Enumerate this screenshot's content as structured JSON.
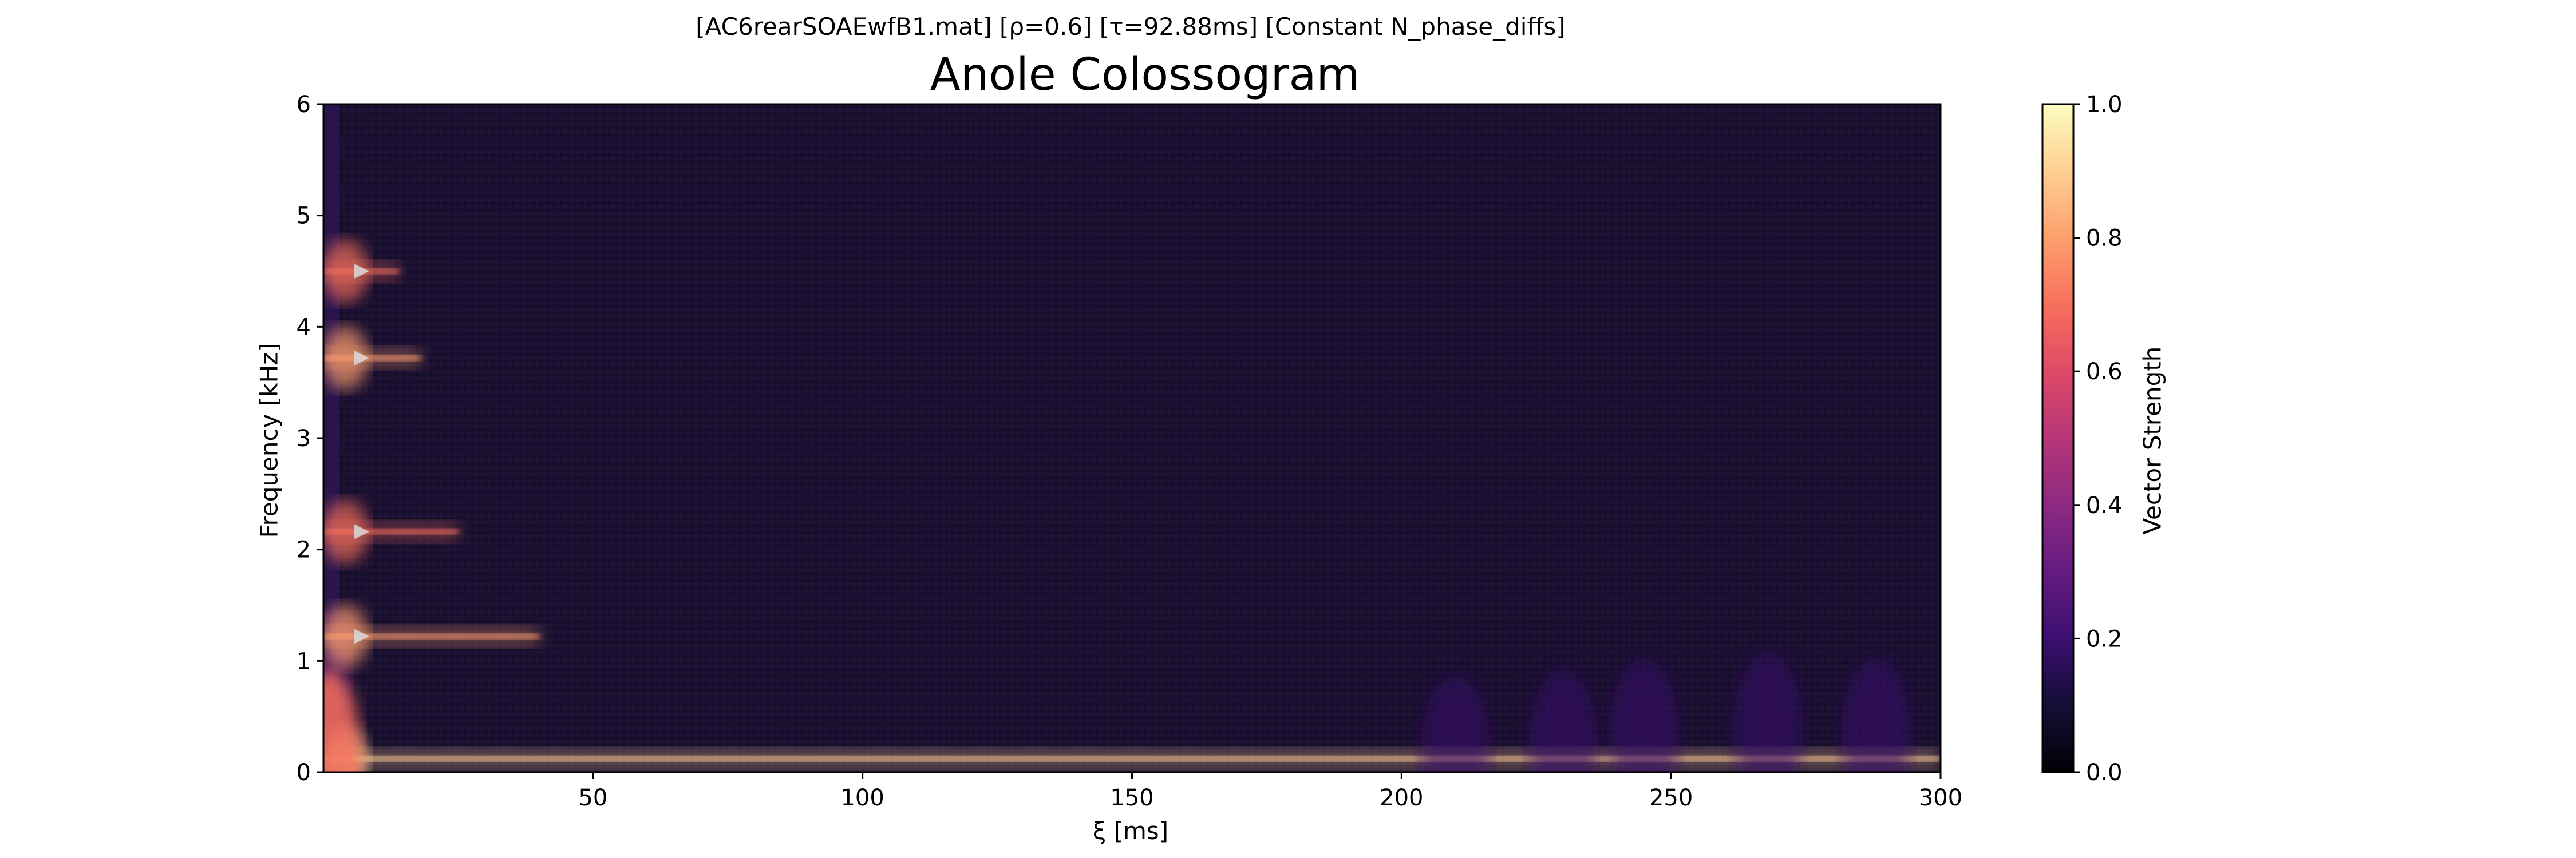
{
  "chart_data": {
    "type": "heatmap",
    "suptitle": "[AC6rearSOAEwfB1.mat]   [ρ=0.6]   [τ=92.88ms]   [Constant N_phase_diffs]",
    "title": "Anole Colossogram",
    "xlabel": "ξ [ms]",
    "ylabel": "Frequency [kHz]",
    "xlim": [
      0,
      300
    ],
    "ylim": [
      0,
      6
    ],
    "xticks": [
      50,
      100,
      150,
      200,
      250,
      300
    ],
    "yticks": [
      0,
      1,
      2,
      3,
      4,
      5,
      6
    ],
    "colormap": "magma",
    "colorbar": {
      "label": "Vector Strength",
      "range": [
        0.0,
        1.0
      ],
      "ticks": [
        "0.0",
        "0.2",
        "0.4",
        "0.6",
        "0.8",
        "1.0"
      ]
    },
    "peak_markers_khz": [
      1.22,
      2.16,
      3.72,
      4.5
    ],
    "marker_xi_ms": 7,
    "features": [
      {
        "freq_khz": 0.12,
        "xi_end_ms": 300,
        "peak": 0.9
      },
      {
        "freq_khz": 1.22,
        "xi_end_ms": 40,
        "peak": 0.75
      },
      {
        "freq_khz": 2.16,
        "xi_end_ms": 25,
        "peak": 0.7
      },
      {
        "freq_khz": 3.72,
        "xi_end_ms": 18,
        "peak": 0.75
      },
      {
        "freq_khz": 4.5,
        "xi_end_ms": 14,
        "peak": 0.65
      }
    ]
  }
}
